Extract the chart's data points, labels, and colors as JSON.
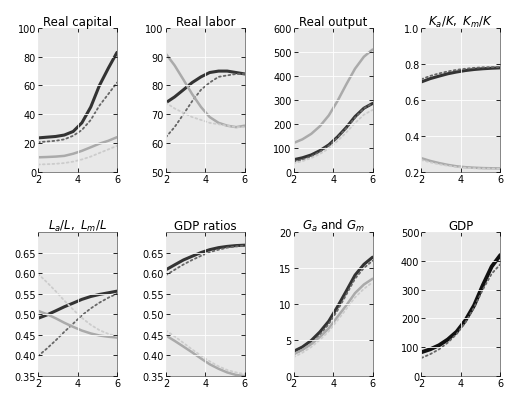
{
  "x": [
    2.0,
    2.44,
    2.89,
    3.33,
    3.78,
    4.22,
    4.67,
    5.11,
    5.56,
    6.0
  ],
  "xlim": [
    2,
    6
  ],
  "xticks": [
    2,
    4,
    6
  ],
  "title_fontsize": 8.5,
  "tick_fontsize": 7,
  "subplots": {
    "real_capital": {
      "title": "Real capital",
      "title_math": false,
      "ylim": [
        0,
        100
      ],
      "yticks": [
        0,
        20,
        40,
        60,
        80,
        100
      ],
      "lines": [
        {
          "y": [
            23.5,
            24.0,
            24.5,
            25.5,
            28.0,
            34.0,
            45.0,
            60.0,
            72.0,
            83.0
          ],
          "color": "#333333",
          "lw": 2.2,
          "ls": "solid"
        },
        {
          "y": [
            20.5,
            21.0,
            21.5,
            22.5,
            25.0,
            29.0,
            36.0,
            46.0,
            54.0,
            62.0
          ],
          "color": "#666666",
          "lw": 1.3,
          "ls": "dotted"
        },
        {
          "y": [
            10.0,
            10.2,
            10.5,
            11.0,
            12.5,
            14.5,
            17.0,
            19.5,
            21.5,
            24.0
          ],
          "color": "#aaaaaa",
          "lw": 1.8,
          "ls": "solid"
        },
        {
          "y": [
            5.0,
            5.2,
            5.5,
            6.0,
            7.0,
            8.5,
            10.5,
            13.0,
            15.5,
            18.0
          ],
          "color": "#cccccc",
          "lw": 1.3,
          "ls": "dotted"
        }
      ]
    },
    "real_labor": {
      "title": "Real labor",
      "title_math": false,
      "ylim": [
        50,
        100
      ],
      "yticks": [
        50,
        60,
        70,
        80,
        90,
        100
      ],
      "lines": [
        {
          "y": [
            74.0,
            76.0,
            78.5,
            81.0,
            83.0,
            84.5,
            85.0,
            85.0,
            84.5,
            84.0
          ],
          "color": "#333333",
          "lw": 2.2,
          "ls": "solid"
        },
        {
          "y": [
            62.0,
            65.5,
            70.0,
            74.5,
            78.5,
            81.0,
            83.0,
            83.5,
            84.0,
            84.0
          ],
          "color": "#666666",
          "lw": 1.3,
          "ls": "dotted"
        },
        {
          "y": [
            91.0,
            87.0,
            82.0,
            77.0,
            72.5,
            69.0,
            67.0,
            66.0,
            65.5,
            66.0
          ],
          "color": "#aaaaaa",
          "lw": 1.8,
          "ls": "solid"
        },
        {
          "y": [
            74.0,
            72.0,
            70.5,
            69.0,
            68.0,
            67.0,
            66.5,
            66.0,
            65.5,
            65.5
          ],
          "color": "#cccccc",
          "lw": 1.3,
          "ls": "dotted"
        }
      ]
    },
    "real_output": {
      "title": "Real output",
      "title_math": false,
      "ylim": [
        0,
        600
      ],
      "yticks": [
        0,
        100,
        200,
        300,
        400,
        500,
        600
      ],
      "lines": [
        {
          "y": [
            50.0,
            58.0,
            70.0,
            88.0,
            112.0,
            145.0,
            185.0,
            230.0,
            265.0,
            285.0
          ],
          "color": "#333333",
          "lw": 2.2,
          "ls": "solid"
        },
        {
          "y": [
            120.0,
            135.0,
            158.0,
            190.0,
            235.0,
            295.0,
            365.0,
            430.0,
            480.0,
            510.0
          ],
          "color": "#aaaaaa",
          "lw": 1.8,
          "ls": "solid"
        },
        {
          "y": [
            40.0,
            50.0,
            64.0,
            83.0,
            108.0,
            142.0,
            182.0,
            225.0,
            265.0,
            285.0
          ],
          "color": "#666666",
          "lw": 1.3,
          "ls": "dotted"
        },
        {
          "y": [
            35.0,
            44.0,
            57.0,
            74.0,
            97.0,
            128.0,
            164.0,
            203.0,
            238.0,
            258.0
          ],
          "color": "#cccccc",
          "lw": 1.3,
          "ls": "dotted"
        }
      ]
    },
    "ka_km_k": {
      "title": "$K_a/K,\\ K_m/K$",
      "title_math": true,
      "ylim": [
        0.2,
        1.0
      ],
      "yticks": [
        0.2,
        0.4,
        0.6,
        0.8,
        1.0
      ],
      "lines": [
        {
          "y": [
            0.7,
            0.718,
            0.732,
            0.745,
            0.755,
            0.763,
            0.769,
            0.773,
            0.776,
            0.778
          ],
          "color": "#333333",
          "lw": 2.2,
          "ls": "solid"
        },
        {
          "y": [
            0.715,
            0.733,
            0.747,
            0.758,
            0.767,
            0.773,
            0.778,
            0.781,
            0.782,
            0.783
          ],
          "color": "#666666",
          "lw": 1.3,
          "ls": "dotted"
        },
        {
          "y": [
            0.275,
            0.26,
            0.248,
            0.238,
            0.23,
            0.225,
            0.222,
            0.22,
            0.219,
            0.218
          ],
          "color": "#aaaaaa",
          "lw": 1.8,
          "ls": "solid"
        },
        {
          "y": [
            0.265,
            0.252,
            0.241,
            0.233,
            0.226,
            0.222,
            0.219,
            0.218,
            0.217,
            0.216
          ],
          "color": "#cccccc",
          "lw": 1.3,
          "ls": "dotted"
        }
      ]
    },
    "la_lm_l": {
      "title": "$L_a/L,\\ L_m/L$",
      "title_math": true,
      "ylim": [
        0.35,
        0.7
      ],
      "yticks": [
        0.35,
        0.4,
        0.45,
        0.5,
        0.55,
        0.6,
        0.65
      ],
      "lines": [
        {
          "y": [
            0.49,
            0.498,
            0.508,
            0.518,
            0.527,
            0.536,
            0.543,
            0.548,
            0.552,
            0.556
          ],
          "color": "#333333",
          "lw": 2.2,
          "ls": "solid"
        },
        {
          "y": [
            0.398,
            0.416,
            0.436,
            0.457,
            0.477,
            0.497,
            0.514,
            0.528,
            0.54,
            0.55
          ],
          "color": "#666666",
          "lw": 1.3,
          "ls": "dotted"
        },
        {
          "y": [
            0.508,
            0.5,
            0.49,
            0.479,
            0.469,
            0.46,
            0.453,
            0.448,
            0.445,
            0.443
          ],
          "color": "#aaaaaa",
          "lw": 1.8,
          "ls": "solid"
        },
        {
          "y": [
            0.598,
            0.578,
            0.556,
            0.533,
            0.511,
            0.491,
            0.474,
            0.461,
            0.452,
            0.446
          ],
          "color": "#cccccc",
          "lw": 1.3,
          "ls": "dotted"
        }
      ]
    },
    "gdp_ratios": {
      "title": "GDP ratios",
      "title_math": false,
      "ylim": [
        0.35,
        0.7
      ],
      "yticks": [
        0.35,
        0.4,
        0.45,
        0.5,
        0.55,
        0.6,
        0.65
      ],
      "lines": [
        {
          "y": [
            0.608,
            0.62,
            0.632,
            0.641,
            0.65,
            0.657,
            0.662,
            0.665,
            0.667,
            0.668
          ],
          "color": "#333333",
          "lw": 2.2,
          "ls": "solid"
        },
        {
          "y": [
            0.595,
            0.608,
            0.621,
            0.632,
            0.642,
            0.651,
            0.657,
            0.662,
            0.665,
            0.667
          ],
          "color": "#666666",
          "lw": 1.3,
          "ls": "dotted"
        },
        {
          "y": [
            0.448,
            0.435,
            0.421,
            0.407,
            0.392,
            0.378,
            0.367,
            0.358,
            0.352,
            0.349
          ],
          "color": "#aaaaaa",
          "lw": 1.8,
          "ls": "solid"
        },
        {
          "y": [
            0.46,
            0.446,
            0.43,
            0.414,
            0.399,
            0.385,
            0.373,
            0.364,
            0.358,
            0.354
          ],
          "color": "#cccccc",
          "lw": 1.3,
          "ls": "dotted"
        }
      ]
    },
    "ga_gm": {
      "title": "$G_a$ and $G_m$",
      "title_math": true,
      "ylim": [
        0,
        20
      ],
      "yticks": [
        0,
        5,
        10,
        15,
        20
      ],
      "lines": [
        {
          "y": [
            3.4,
            4.0,
            4.9,
            6.1,
            7.6,
            9.6,
            11.8,
            14.0,
            15.5,
            16.5
          ],
          "color": "#333333",
          "lw": 2.2,
          "ls": "solid"
        },
        {
          "y": [
            3.0,
            3.6,
            4.5,
            5.7,
            7.2,
            9.1,
            11.3,
            13.5,
            15.0,
            16.0
          ],
          "color": "#666666",
          "lw": 1.3,
          "ls": "dotted"
        },
        {
          "y": [
            3.0,
            3.6,
            4.4,
            5.4,
            6.6,
            8.2,
            9.8,
            11.5,
            12.7,
            13.5
          ],
          "color": "#aaaaaa",
          "lw": 1.8,
          "ls": "solid"
        },
        {
          "y": [
            2.6,
            3.2,
            4.0,
            5.0,
            6.2,
            7.7,
            9.3,
            10.9,
            12.1,
            13.0
          ],
          "color": "#cccccc",
          "lw": 1.3,
          "ls": "dotted"
        }
      ]
    },
    "gdp": {
      "title": "GDP",
      "title_math": false,
      "ylim": [
        0,
        500
      ],
      "yticks": [
        0,
        100,
        200,
        300,
        400,
        500
      ],
      "lines": [
        {
          "y": [
            82.0,
            92.0,
            106.0,
            126.0,
            153.0,
            192.0,
            245.0,
            315.0,
            380.0,
            420.0
          ],
          "color": "#111111",
          "lw": 2.8,
          "ls": "solid"
        },
        {
          "y": [
            62.0,
            75.0,
            92.0,
            115.0,
            145.0,
            185.0,
            238.0,
            300.0,
            355.0,
            388.0
          ],
          "color": "#666666",
          "lw": 1.3,
          "ls": "dotted"
        }
      ]
    }
  }
}
